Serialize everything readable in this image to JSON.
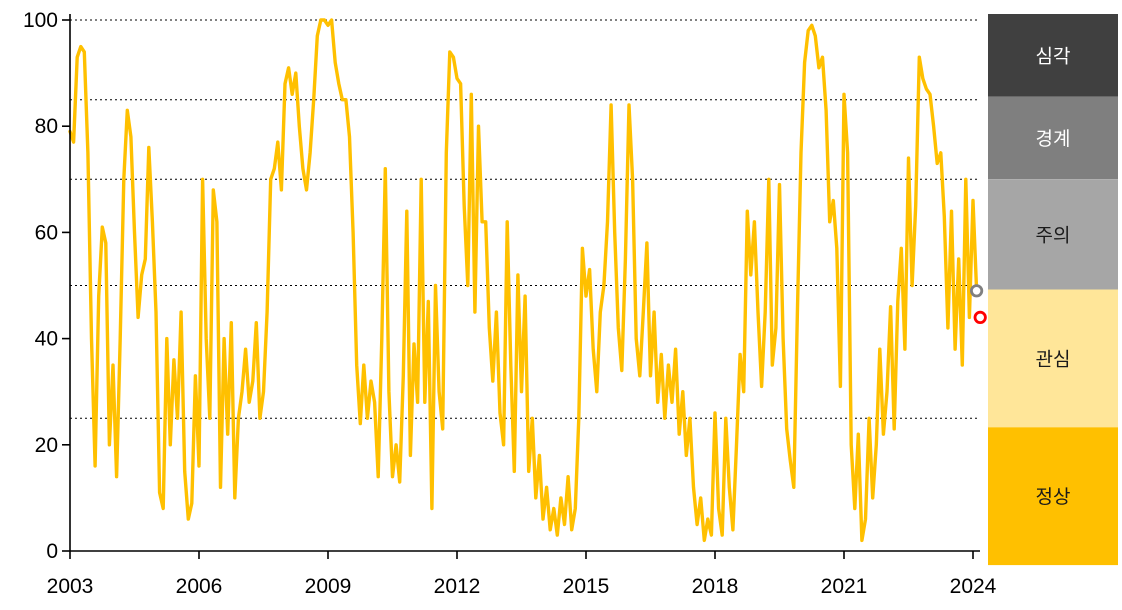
{
  "chart_data": {
    "type": "line",
    "title": "",
    "xlabel": "",
    "ylabel": "",
    "frequency": "monthly",
    "x_start": 2003.0,
    "x_step": 0.08333,
    "xlim": [
      2003,
      2024.35
    ],
    "ylim": [
      0,
      100
    ],
    "grid": "horizontal-dotted",
    "gridlines_y": [
      25,
      50,
      70,
      85,
      100
    ],
    "x_ticks": [
      2003,
      2006,
      2009,
      2012,
      2015,
      2018,
      2021,
      2024
    ],
    "y_ticks": [
      0,
      20,
      40,
      60,
      80,
      100
    ],
    "line_color": "#FFC000",
    "values": [
      79,
      77,
      93,
      95,
      94,
      75,
      40,
      16,
      48,
      61,
      58,
      20,
      35,
      14,
      40,
      70,
      83,
      78,
      60,
      44,
      52,
      55,
      76,
      62,
      45,
      11,
      8,
      40,
      20,
      36,
      25,
      45,
      15,
      6,
      9,
      33,
      16,
      70,
      40,
      25,
      68,
      62,
      12,
      40,
      22,
      43,
      10,
      25,
      30,
      38,
      28,
      32,
      43,
      25,
      30,
      45,
      70,
      72,
      77,
      68,
      88,
      91,
      86,
      90,
      80,
      72,
      68,
      75,
      85,
      97,
      100,
      100,
      99,
      100,
      92,
      88,
      85,
      85,
      78,
      60,
      35,
      24,
      35,
      25,
      32,
      28,
      14,
      40,
      72,
      30,
      14,
      20,
      13,
      33,
      64,
      18,
      39,
      28,
      70,
      28,
      47,
      8,
      50,
      30,
      23,
      75,
      94,
      93,
      89,
      88,
      65,
      50,
      86,
      45,
      80,
      62,
      62,
      42,
      32,
      45,
      26,
      20,
      62,
      35,
      15,
      52,
      30,
      48,
      15,
      25,
      10,
      18,
      6,
      12,
      4,
      8,
      3,
      10,
      5,
      14,
      4,
      8,
      25,
      57,
      48,
      53,
      38,
      30,
      45,
      50,
      62,
      84,
      60,
      42,
      34,
      55,
      84,
      70,
      40,
      33,
      45,
      58,
      33,
      45,
      28,
      37,
      25,
      35,
      28,
      38,
      22,
      30,
      18,
      25,
      12,
      5,
      10,
      2,
      6,
      3,
      26,
      8,
      3,
      25,
      12,
      4,
      20,
      37,
      30,
      64,
      52,
      62,
      45,
      31,
      45,
      70,
      35,
      42,
      69,
      40,
      23,
      17,
      12,
      45,
      75,
      92,
      98,
      99,
      97,
      91,
      93,
      83,
      62,
      66,
      57,
      31,
      86,
      75,
      20,
      8,
      22,
      2,
      6,
      25,
      10,
      20,
      38,
      22,
      30,
      46,
      23,
      47,
      57,
      38,
      74,
      50,
      65,
      93,
      89,
      87,
      86,
      80,
      73,
      75,
      63,
      42,
      64,
      38,
      55,
      35,
      70,
      44,
      66,
      49,
      44
    ],
    "markers": [
      {
        "x": 2024.083,
        "value": 49,
        "color": "#808080",
        "shape": "open-circle"
      },
      {
        "x": 2024.167,
        "value": 44,
        "color": "#FF0000",
        "shape": "open-circle"
      }
    ],
    "zones": [
      {
        "key": "severe",
        "label": "심각",
        "from": 85,
        "to": 100,
        "color": "#404040",
        "text_color": "#FFFFFF"
      },
      {
        "key": "alert",
        "label": "경계",
        "from": 70,
        "to": 85,
        "color": "#7F7F7F",
        "text_color": "#FFFFFF"
      },
      {
        "key": "caution",
        "label": "주의",
        "from": 50,
        "to": 70,
        "color": "#A6A6A6",
        "text_color": "#1A1A1A"
      },
      {
        "key": "attention",
        "label": "관심",
        "from": 25,
        "to": 50,
        "color": "#FFE699",
        "text_color": "#1A1A1A"
      },
      {
        "key": "normal",
        "label": "정상",
        "from": 0,
        "to": 25,
        "color": "#FFC000",
        "text_color": "#1A1A1A"
      }
    ]
  }
}
